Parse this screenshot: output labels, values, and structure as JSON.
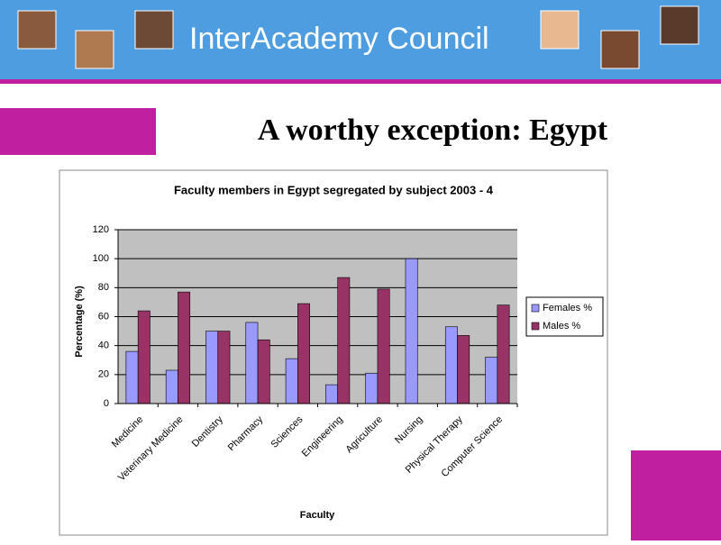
{
  "header": {
    "title": "InterAcademy Council"
  },
  "slide_title": "A worthy exception: Egypt",
  "chart_data": {
    "type": "bar",
    "title": "Faculty members in Egypt segregated by subject 2003 - 4",
    "x_label": "Faculty",
    "y_label": "Percentage (%)",
    "categories": [
      "Medicine",
      "Veterinary Medicine",
      "Dentistry",
      "Pharmacy",
      "Sciences",
      "Engineering",
      "Agriculture",
      "Nursing",
      "Physical Therapy",
      "Computer Science"
    ],
    "series": [
      {
        "name": "Females %",
        "color": "#9999ff",
        "values": [
          36,
          23,
          50,
          56,
          31,
          13,
          21,
          100,
          53,
          32
        ]
      },
      {
        "name": "Males %",
        "color": "#993366",
        "values": [
          64,
          77,
          50,
          44,
          69,
          87,
          79,
          0,
          47,
          68
        ]
      }
    ],
    "ylim": [
      0,
      120
    ],
    "yticks": [
      0,
      20,
      40,
      60,
      80,
      100,
      120
    ],
    "grid": true,
    "legend": "right"
  }
}
